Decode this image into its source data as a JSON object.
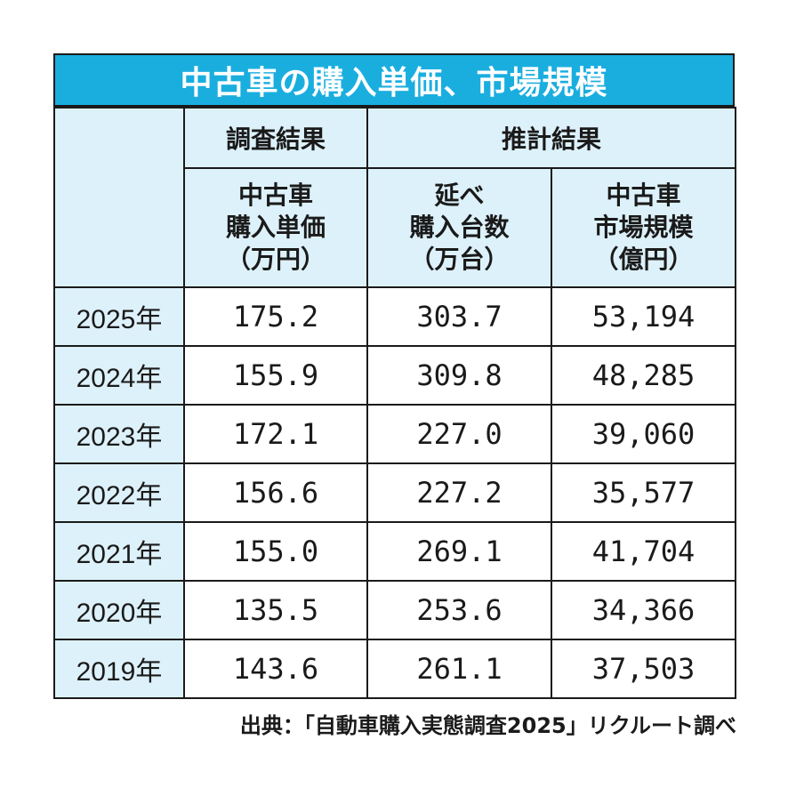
{
  "title": "中古車の購入単価、市場規模",
  "groups": {
    "survey": "調査結果",
    "estimate": "推計結果"
  },
  "columns": [
    {
      "line1": "中古車",
      "line2": "購入単価",
      "line3": "（万円）"
    },
    {
      "line1": "延べ",
      "line2": "購入台数",
      "line3": "（万台）"
    },
    {
      "line1": "中古車",
      "line2": "市場規模",
      "line3": "（億円）"
    }
  ],
  "chart_data": {
    "type": "table",
    "title": "中古車の購入単価、市場規模",
    "rows": [
      {
        "year": "2025年",
        "price": "175.2",
        "units": "303.7",
        "market": "53,194"
      },
      {
        "year": "2024年",
        "price": "155.9",
        "units": "309.8",
        "market": "48,285"
      },
      {
        "year": "2023年",
        "price": "172.1",
        "units": "227.0",
        "market": "39,060"
      },
      {
        "year": "2022年",
        "price": "156.6",
        "units": "227.2",
        "market": "35,577"
      },
      {
        "year": "2021年",
        "price": "155.0",
        "units": "269.1",
        "market": "41,704"
      },
      {
        "year": "2020年",
        "price": "135.5",
        "units": "253.6",
        "market": "34,366"
      },
      {
        "year": "2019年",
        "price": "143.6",
        "units": "261.1",
        "market": "37,503"
      }
    ]
  },
  "source": "出典：「自動車購入実態調査2025」リクルート調べ",
  "colors": {
    "title_bg": "#1aaedf",
    "header_bg": "#ddf1fa",
    "border": "#1a1a1a"
  }
}
